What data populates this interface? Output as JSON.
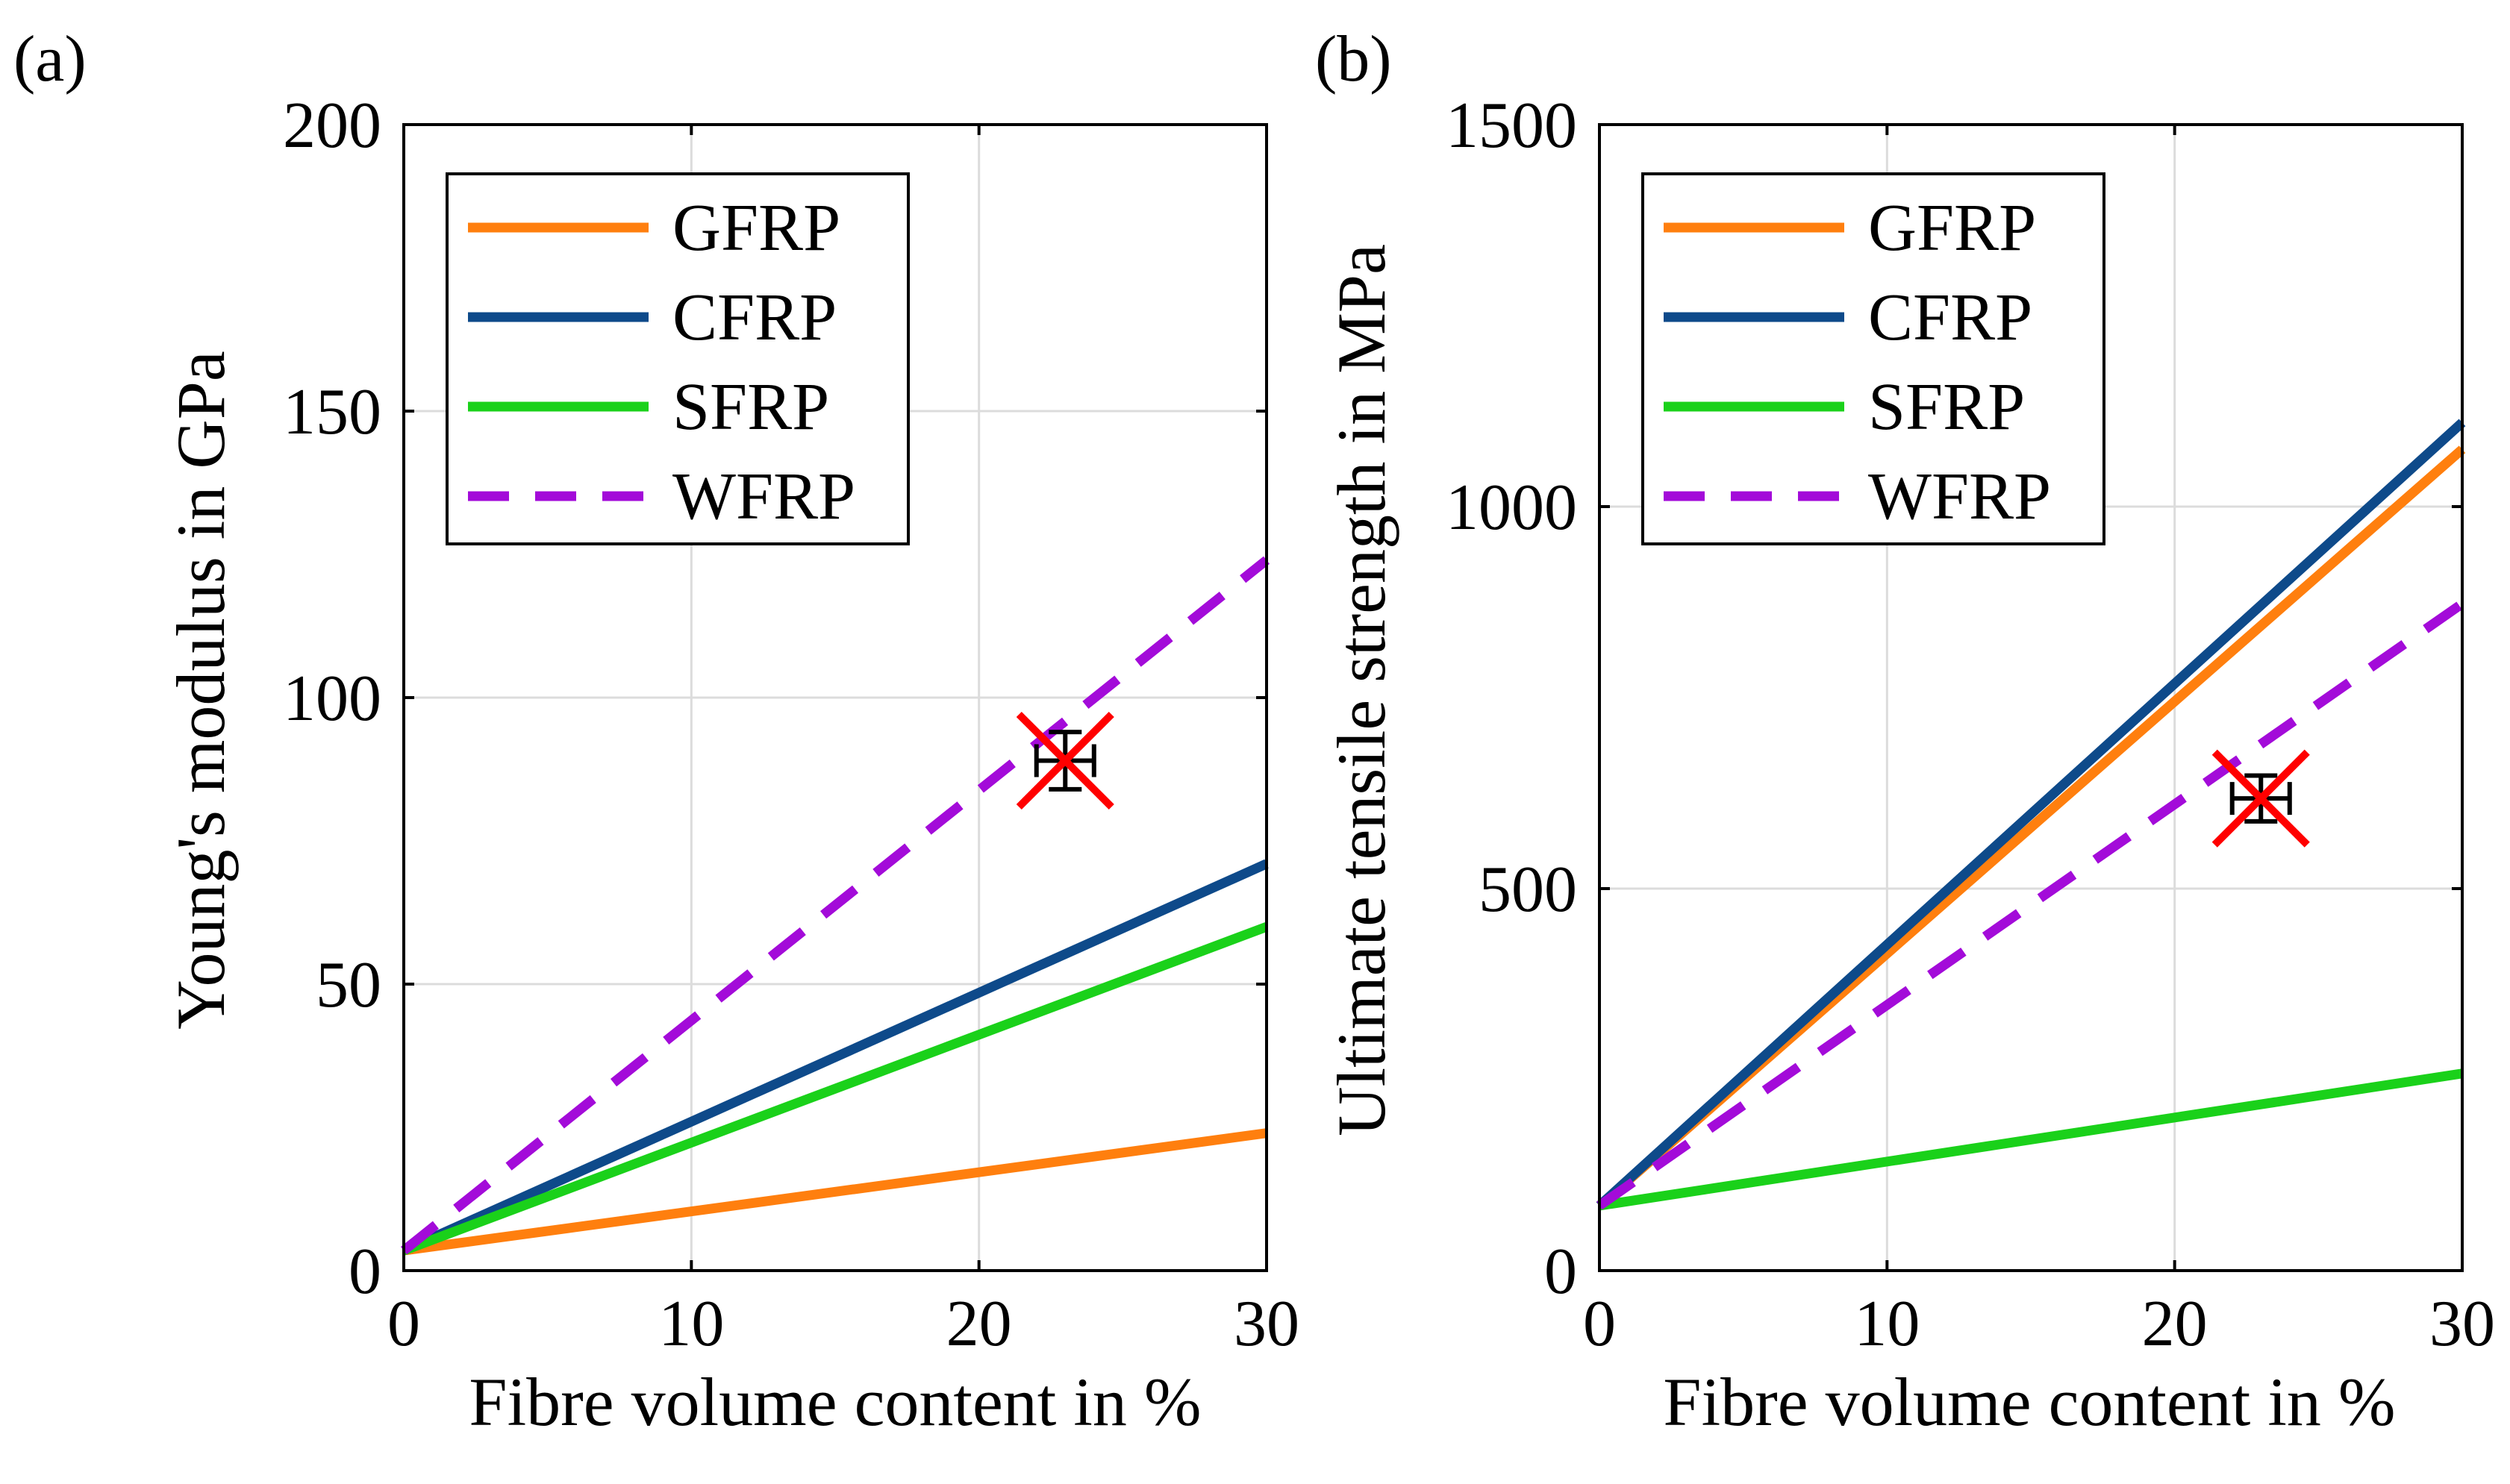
{
  "colors": {
    "GFRP": "#ff7f0e",
    "CFRP": "#0e4a8a",
    "SFRP": "#1ad11a",
    "WFRP": "#a30bd9",
    "marker_cross": "#ff0000",
    "marker_errorbar": "#000000"
  },
  "chart_data": [
    {
      "type": "line",
      "panel_label": "(a)",
      "xlabel": "Fibre volume content in %",
      "ylabel": "Young's modulus in GPa",
      "xlim": [
        0,
        30
      ],
      "ylim": [
        0,
        200
      ],
      "xticks": [
        0,
        10,
        20,
        30
      ],
      "yticks": [
        0,
        50,
        100,
        150,
        200
      ],
      "grid": true,
      "legend_position": "top-left",
      "series": [
        {
          "name": "GFRP",
          "style": "solid",
          "x": [
            0,
            30
          ],
          "y": [
            3.5,
            24
          ]
        },
        {
          "name": "CFRP",
          "style": "solid",
          "x": [
            0,
            30
          ],
          "y": [
            3.5,
            71
          ]
        },
        {
          "name": "SFRP",
          "style": "solid",
          "x": [
            0,
            30
          ],
          "y": [
            3.5,
            60
          ]
        },
        {
          "name": "WFRP",
          "style": "dashed",
          "x": [
            0,
            30
          ],
          "y": [
            3.5,
            124
          ]
        }
      ],
      "measurement": {
        "x": 23,
        "y": 89,
        "x_err": 1,
        "y_err": 5
      }
    },
    {
      "type": "line",
      "panel_label": "(b)",
      "xlabel": "Fibre volume content in %",
      "ylabel": "Ultimate tensile strength in MPa",
      "xlim": [
        0,
        30
      ],
      "ylim": [
        0,
        1500
      ],
      "xticks": [
        0,
        10,
        20,
        30
      ],
      "yticks": [
        0,
        500,
        1000,
        1500
      ],
      "grid": true,
      "legend_position": "top-left",
      "series": [
        {
          "name": "GFRP",
          "style": "solid",
          "x": [
            0,
            30
          ],
          "y": [
            85,
            1075
          ]
        },
        {
          "name": "CFRP",
          "style": "solid",
          "x": [
            0,
            30
          ],
          "y": [
            85,
            1110
          ]
        },
        {
          "name": "SFRP",
          "style": "solid",
          "x": [
            0,
            30
          ],
          "y": [
            85,
            258
          ]
        },
        {
          "name": "WFRP",
          "style": "dashed",
          "x": [
            0,
            30
          ],
          "y": [
            85,
            873
          ]
        }
      ],
      "measurement": {
        "x": 23,
        "y": 618,
        "x_err": 1,
        "y_err": 30
      }
    }
  ]
}
